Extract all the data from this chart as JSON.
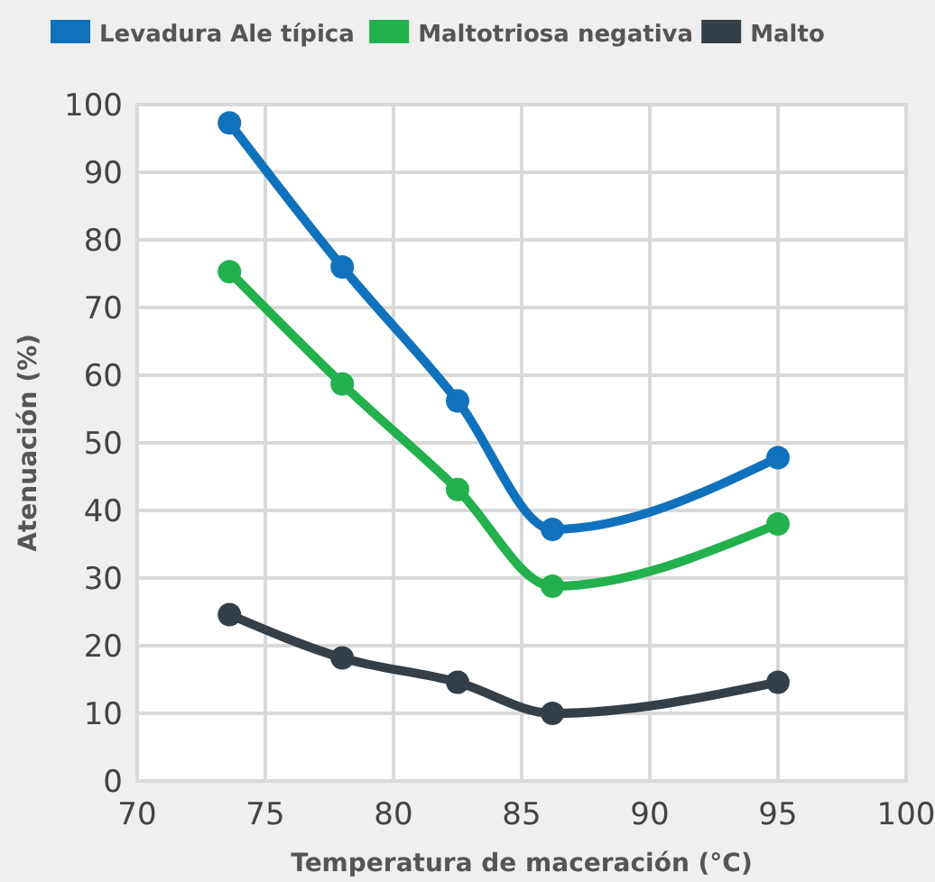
{
  "chart_data": {
    "type": "line",
    "xlabel": "Temperatura de maceración (°C)",
    "ylabel": "Atenuación (%)",
    "x": [
      73.6,
      78,
      82.5,
      86.2,
      95
    ],
    "series": [
      {
        "name": "Levadura Ale típica",
        "color": "#1072bd",
        "values": [
          97.3,
          76,
          56.2,
          37.2,
          47.8
        ]
      },
      {
        "name": "Maltotriosa negativa",
        "color": "#22b14c",
        "values": [
          75.3,
          58.7,
          43.1,
          28.8,
          38
        ]
      },
      {
        "name": "Malto",
        "color": "#343f48",
        "values": [
          24.6,
          18.2,
          14.6,
          10,
          14.6
        ]
      }
    ],
    "xlim": [
      70,
      100
    ],
    "xticks": [
      70,
      75,
      80,
      85,
      90,
      95,
      100
    ],
    "ylim": [
      0,
      100
    ],
    "yticks": [
      0,
      10,
      20,
      30,
      40,
      50,
      60,
      70,
      80,
      90,
      100
    ],
    "grid": true,
    "legend": "top",
    "marker": "circle",
    "line_style": "solid"
  }
}
